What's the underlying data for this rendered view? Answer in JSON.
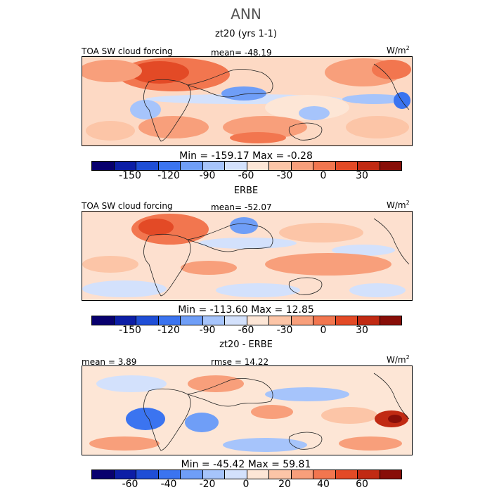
{
  "title": "ANN",
  "units_label": "W/m",
  "units_exp": "2",
  "palette": {
    "abs": [
      "#08006e",
      "#0c1ea6",
      "#1f4ed6",
      "#3b74f0",
      "#6f9ef7",
      "#a6c4fb",
      "#d3e1fc",
      "#fde6d6",
      "#fcc5a7",
      "#f89f7b",
      "#f2764f",
      "#e34a26",
      "#c12a13",
      "#880e08"
    ],
    "diff": [
      "#08006e",
      "#0c1ea6",
      "#1f4ed6",
      "#3b74f0",
      "#6f9ef7",
      "#a6c4fb",
      "#d3e1fc",
      "#fde6d6",
      "#fcc5a7",
      "#f89f7b",
      "#f2764f",
      "#e34a26",
      "#c12a13",
      "#880e08"
    ]
  },
  "panels": [
    {
      "title": "zt20 (yrs 1-1)",
      "left_label": "TOA SW cloud forcing",
      "center_label": "mean= -48.19",
      "min_max": "Min = -159.17 Max =  -0.28",
      "ticks": [
        "-150",
        "-120",
        "-90",
        "-60",
        "-30",
        "0",
        "30"
      ],
      "tick_values": [
        -150,
        -120,
        -90,
        -60,
        -30,
        0,
        30
      ],
      "bar_range": [
        -180,
        60
      ],
      "palette": "abs"
    },
    {
      "title": "ERBE",
      "left_label": "TOA SW cloud forcing",
      "center_label": "mean= -52.07",
      "min_max": "Min = -113.60 Max =  12.85",
      "ticks": [
        "-150",
        "-120",
        "-90",
        "-60",
        "-30",
        "0",
        "30"
      ],
      "tick_values": [
        -150,
        -120,
        -90,
        -60,
        -30,
        0,
        30
      ],
      "bar_range": [
        -180,
        60
      ],
      "palette": "abs"
    },
    {
      "title": "zt20 - ERBE",
      "left_label": "mean =   3.89",
      "center_label": "rmse =  14.22",
      "min_max": "Min = -45.42 Max =  59.81",
      "ticks": [
        "-60",
        "-40",
        "-20",
        "0",
        "20",
        "40",
        "60"
      ],
      "tick_values": [
        -60,
        -40,
        -20,
        0,
        20,
        40,
        60
      ],
      "bar_range": [
        -80,
        80
      ],
      "palette": "diff"
    }
  ],
  "chart_data": [
    {
      "type": "heatmap",
      "title": "zt20 (yrs 1-1)",
      "field": "TOA SW cloud forcing",
      "units": "W/m2",
      "mean": -48.19,
      "min": -159.17,
      "max": -0.28,
      "colorbar_ticks": [
        -150,
        -120,
        -90,
        -60,
        -30,
        0,
        30
      ]
    },
    {
      "type": "heatmap",
      "title": "ERBE",
      "field": "TOA SW cloud forcing",
      "units": "W/m2",
      "mean": -52.07,
      "min": -113.6,
      "max": 12.85,
      "colorbar_ticks": [
        -150,
        -120,
        -90,
        -60,
        -30,
        0,
        30
      ]
    },
    {
      "type": "heatmap",
      "title": "zt20 - ERBE",
      "units": "W/m2",
      "mean": 3.89,
      "rmse": 14.22,
      "min": -45.42,
      "max": 59.81,
      "colorbar_ticks": [
        -60,
        -40,
        -20,
        0,
        20,
        40,
        60
      ]
    }
  ]
}
